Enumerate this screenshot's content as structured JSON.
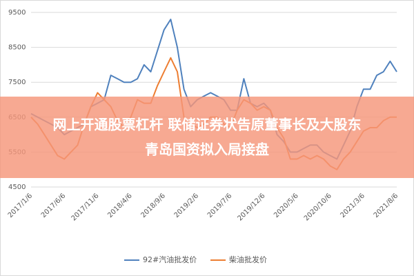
{
  "chart_data": {
    "type": "line",
    "categories": [
      "2017/1/6",
      null,
      null,
      null,
      null,
      "2017/6/6",
      null,
      null,
      null,
      null,
      "2017/11/6",
      null,
      null,
      null,
      null,
      "2018/4/6",
      null,
      null,
      null,
      null,
      "2018/9/6",
      null,
      null,
      null,
      null,
      "2019/2/6",
      null,
      null,
      null,
      null,
      "2019/7/6",
      null,
      null,
      null,
      null,
      "2019/12/6",
      null,
      null,
      null,
      null,
      "2020/5/6",
      null,
      null,
      null,
      null,
      "2020/10/6",
      null,
      null,
      null,
      null,
      "2021/3/6",
      null,
      null,
      null,
      null,
      "2021/8/6"
    ],
    "series": [
      {
        "name": "92#汽油批发价",
        "color": "#4f81bd",
        "values": [
          6600,
          6500,
          6400,
          6300,
          6200,
          6000,
          6100,
          6200,
          6300,
          6800,
          6900,
          7000,
          7700,
          7600,
          7500,
          7500,
          7600,
          8000,
          7800,
          8400,
          9000,
          9300,
          8500,
          7300,
          6800,
          7000,
          7100,
          7200,
          7100,
          7000,
          6700,
          6700,
          7600,
          6900,
          6800,
          6900,
          6700,
          6000,
          5800,
          5500,
          5500,
          5600,
          5700,
          5700,
          5500,
          5400,
          5300,
          5700,
          6100,
          6800,
          7300,
          7300,
          7700,
          7800,
          8100,
          7800
        ]
      },
      {
        "name": "柴油批发价",
        "color": "#ed7d31",
        "values": [
          6500,
          6300,
          6000,
          5700,
          5400,
          5300,
          5500,
          5700,
          6300,
          6800,
          7200,
          7000,
          6800,
          6400,
          6200,
          6500,
          7000,
          6900,
          6900,
          7400,
          7800,
          8200,
          7800,
          6500,
          6300,
          6200,
          6300,
          6500,
          6500,
          6300,
          6200,
          6700,
          7000,
          6900,
          6700,
          6800,
          6700,
          6200,
          5900,
          5300,
          5300,
          5400,
          5300,
          5400,
          5300,
          5100,
          5000,
          5300,
          5500,
          5800,
          6100,
          6200,
          6200,
          6400,
          6500,
          6500
        ]
      }
    ],
    "ylim": [
      4500,
      9500
    ],
    "yticks": [
      4500,
      5500,
      6500,
      7500,
      8500,
      9500
    ],
    "grid": true,
    "legend": "bottom"
  },
  "overlay": {
    "line1": "网上开通股票杠杆 联储证券状告原董事长及大股东",
    "line2": "青岛国资拟入局接盘"
  }
}
